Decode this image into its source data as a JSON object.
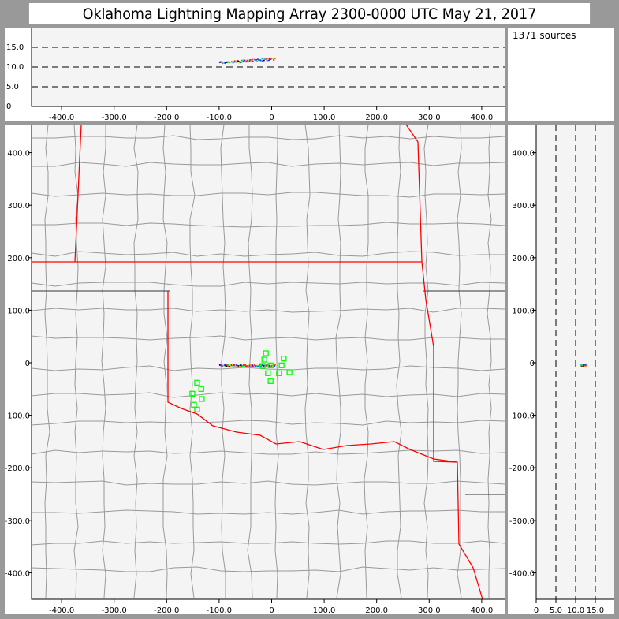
{
  "title": "Oklahoma Lightning Mapping Array   2300-0000 UTC  May 21, 2017",
  "source_count": "1371 sources",
  "colors": {
    "frame": "#999999",
    "plot_bg": "#f4f4f4",
    "state_border": "#ff0000",
    "county_border": "#999999",
    "station": "#00ff00"
  },
  "chart_data": {
    "type": "scatter",
    "plan_view": {
      "x_ticks": [
        "-400.0",
        "-300.0",
        "-200.0",
        "-100.0",
        "0",
        "100.0",
        "200.0",
        "300.0",
        "400.0"
      ],
      "x_tick_values": [
        -400,
        -300,
        -200,
        -100,
        0,
        100,
        200,
        300,
        400
      ],
      "y_ticks": [
        "400.0",
        "300.0",
        "200.0",
        "100.0",
        "0",
        "-100.0",
        "-200.0",
        "-300.0",
        "-400.0"
      ],
      "y_tick_values": [
        400,
        300,
        200,
        100,
        0,
        -100,
        -200,
        -300,
        -400
      ],
      "xlim": [
        -450,
        450
      ],
      "ylim": [
        -450,
        450
      ]
    },
    "altitude_x_view": {
      "y_ticks": [
        "15.0",
        "10.0",
        "5.0",
        "0"
      ],
      "y_tick_values": [
        15,
        10,
        5,
        0
      ],
      "ylim": [
        0,
        20
      ],
      "dashed_lines": [
        5,
        10,
        15
      ]
    },
    "altitude_y_view": {
      "x_ticks": [
        "0",
        "5.0",
        "10.0",
        "15.0"
      ],
      "x_tick_values": [
        0,
        5,
        10,
        15
      ],
      "xlim": [
        0,
        20
      ],
      "dashed_lines": [
        5,
        10,
        15
      ]
    },
    "stations_km": [
      [
        -11,
        18
      ],
      [
        -14,
        6
      ],
      [
        23,
        8
      ],
      [
        -2,
        -5
      ],
      [
        -17,
        -6
      ],
      [
        19,
        -5
      ],
      [
        14,
        -20
      ],
      [
        -7,
        -20
      ],
      [
        34,
        -18
      ],
      [
        -2,
        -35
      ],
      [
        -142,
        -38
      ],
      [
        -134,
        -50
      ],
      [
        -151,
        -59
      ],
      [
        -133,
        -69
      ],
      [
        -148,
        -80
      ],
      [
        -142,
        -89
      ]
    ],
    "sources": {
      "x_km_range": [
        -100,
        5
      ],
      "y_km": -4,
      "alt_km_range": [
        10.5,
        13.5
      ]
    }
  }
}
